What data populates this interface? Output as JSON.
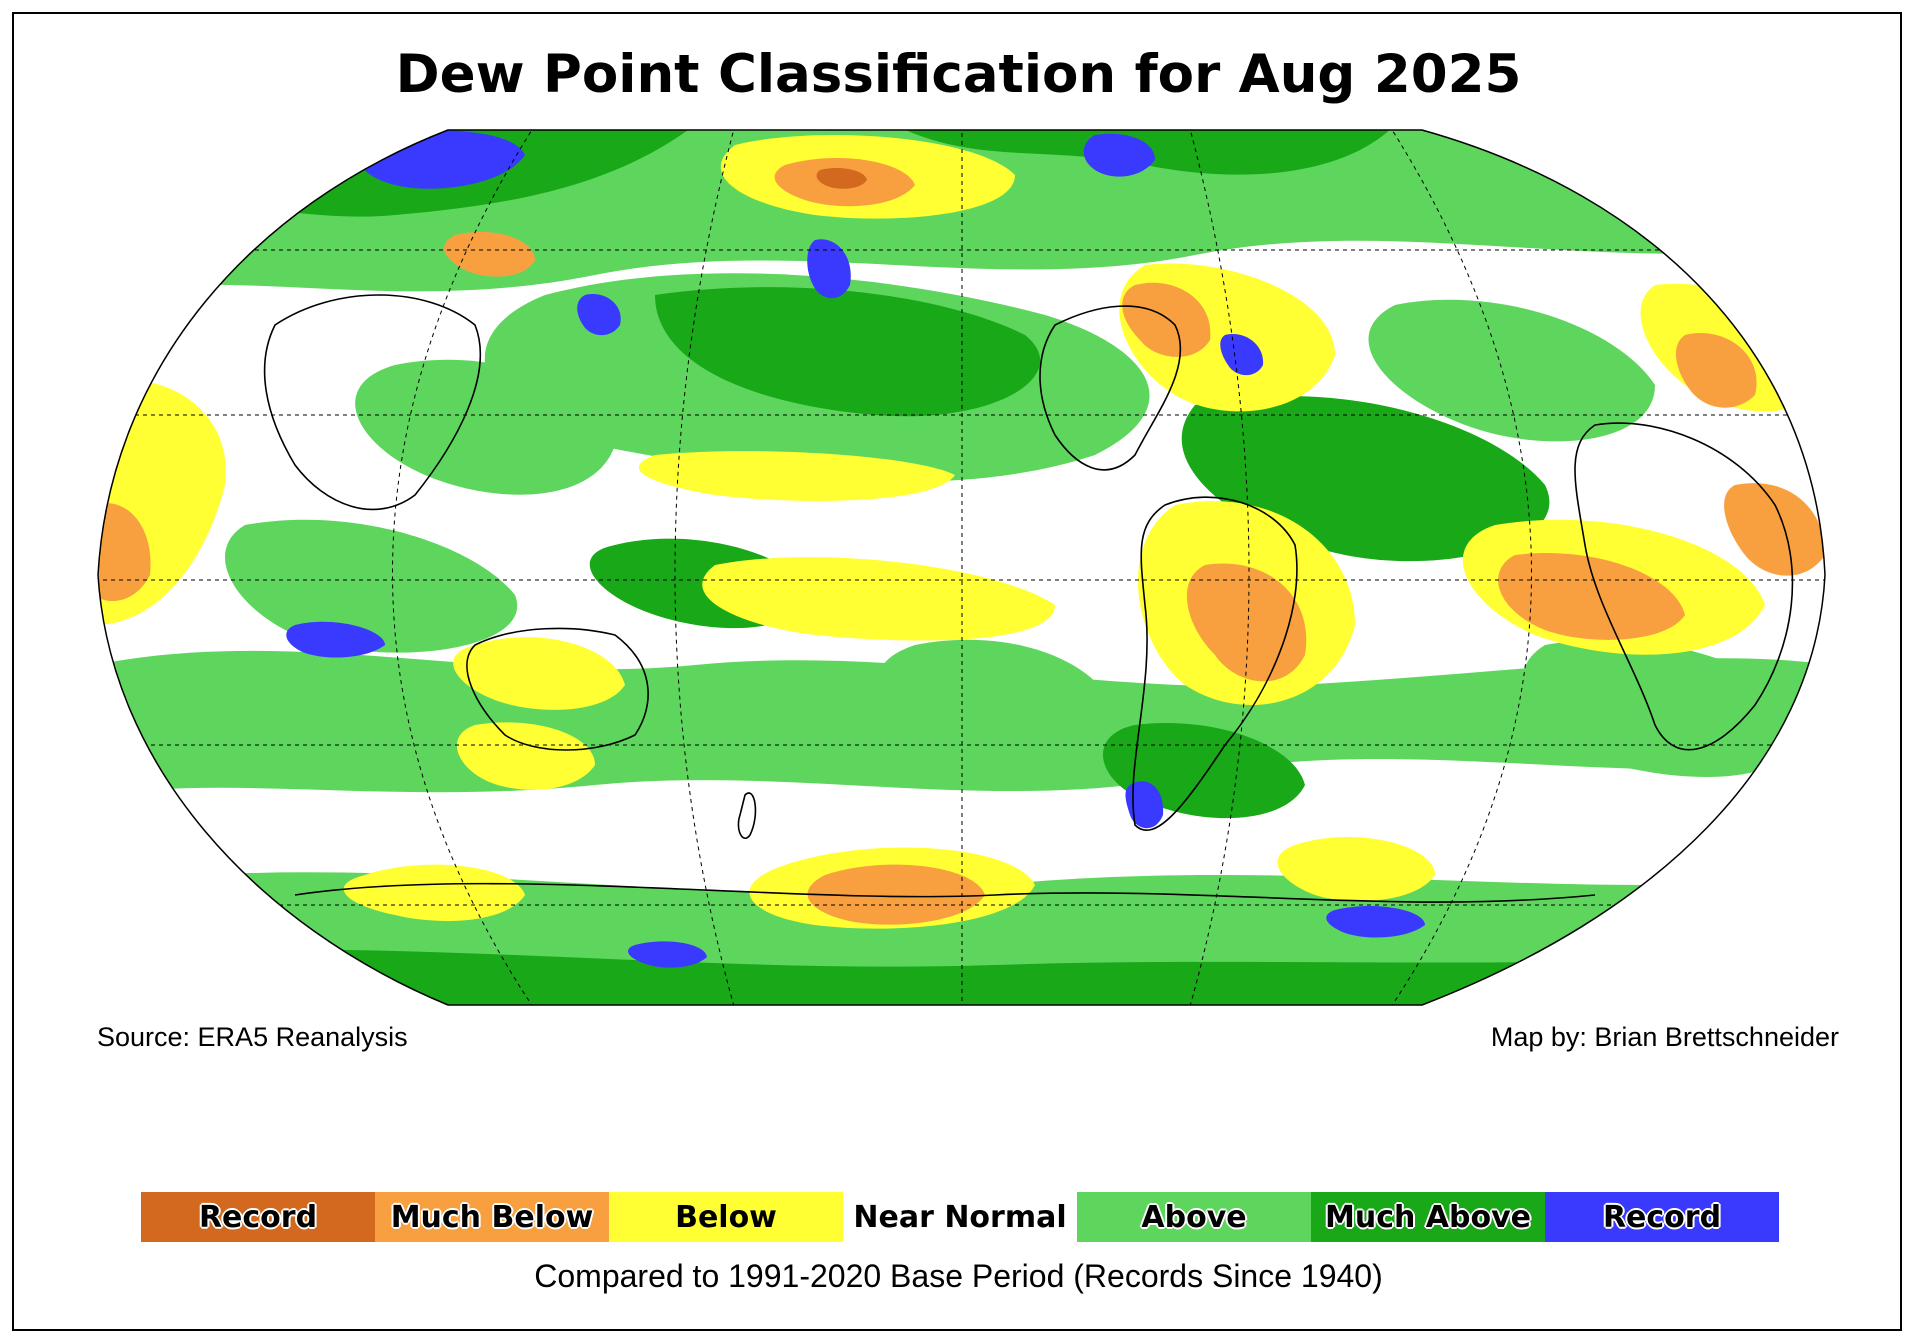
{
  "title": "Dew Point Classification for Aug 2025",
  "source": "Source: ERA5 Reanalysis",
  "credit": "Map by: Brian Brettschneider",
  "legend": [
    {
      "label": "Record",
      "color": "#d2691e",
      "outlined": true
    },
    {
      "label": "Much Below",
      "color": "#f8a040",
      "outlined": true
    },
    {
      "label": "Below",
      "color": "#ffff33",
      "outlined": false
    },
    {
      "label": "Near Normal",
      "color": "#ffffff",
      "outlined": false
    },
    {
      "label": "Above",
      "color": "#5ed65e",
      "outlined": true
    },
    {
      "label": "Much Above",
      "color": "#18a818",
      "outlined": true
    },
    {
      "label": "Record",
      "color": "#3a3aff",
      "outlined": true
    }
  ],
  "footnote": "Compared to 1991-2020 Base Period   (Records Since 1940)",
  "map": {
    "projection": "robinson",
    "central_longitude": 180,
    "gridlines": "dashed"
  }
}
